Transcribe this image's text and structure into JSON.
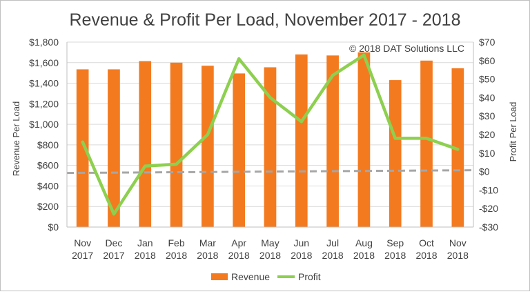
{
  "chart_data": {
    "type": "bar",
    "title": "Revenue & Profit Per Load, November 2017  - 2018",
    "copyright": "© 2018 DAT Solutions LLC",
    "categories": [
      [
        "Nov",
        "2017"
      ],
      [
        "Dec",
        "2017"
      ],
      [
        "Jan",
        "2018"
      ],
      [
        "Feb",
        "2018"
      ],
      [
        "Mar",
        "2018"
      ],
      [
        "Apr",
        "2018"
      ],
      [
        "May",
        "2018"
      ],
      [
        "Jun",
        "2018"
      ],
      [
        "Jul",
        "2018"
      ],
      [
        "Aug",
        "2018"
      ],
      [
        "Sep",
        "2018"
      ],
      [
        "Oct",
        "2018"
      ],
      [
        "Nov",
        "2018"
      ]
    ],
    "series": [
      {
        "name": "Revenue",
        "type": "bar",
        "axis": "left",
        "color": "#f47a1f",
        "values": [
          1535,
          1535,
          1615,
          1600,
          1570,
          1495,
          1555,
          1680,
          1670,
          1700,
          1430,
          1620,
          1545
        ]
      },
      {
        "name": "Profit",
        "type": "line",
        "axis": "right",
        "color": "#8dd04f",
        "values": [
          16,
          -23,
          3,
          4,
          20,
          61,
          40,
          27,
          52,
          63,
          18,
          18,
          12
        ]
      }
    ],
    "reference_line": {
      "axis": "right",
      "value": 0,
      "style": "dashed",
      "color": "#a6a6a6"
    },
    "yleft": {
      "label": "Revenue Per Load",
      "ylim": [
        0,
        1800
      ],
      "ticks": [
        0,
        200,
        400,
        600,
        800,
        1000,
        1200,
        1400,
        1600,
        1800
      ],
      "tick_labels": [
        "$0",
        "$200",
        "$400",
        "$600",
        "$800",
        "$1,000",
        "$1,200",
        "$1,400",
        "$1,600",
        "$1,800"
      ]
    },
    "yright": {
      "label": "Profit Per Load",
      "ylim": [
        -30,
        70
      ],
      "ticks": [
        -30,
        -20,
        -10,
        0,
        10,
        20,
        30,
        40,
        50,
        60,
        70
      ],
      "tick_labels": [
        "-$30",
        "-$20",
        "-$10",
        "$0",
        "$10",
        "$20",
        "$30",
        "$40",
        "$50",
        "$60",
        "$70"
      ]
    },
    "grid": "horizontal",
    "legend": "bottom-center"
  }
}
